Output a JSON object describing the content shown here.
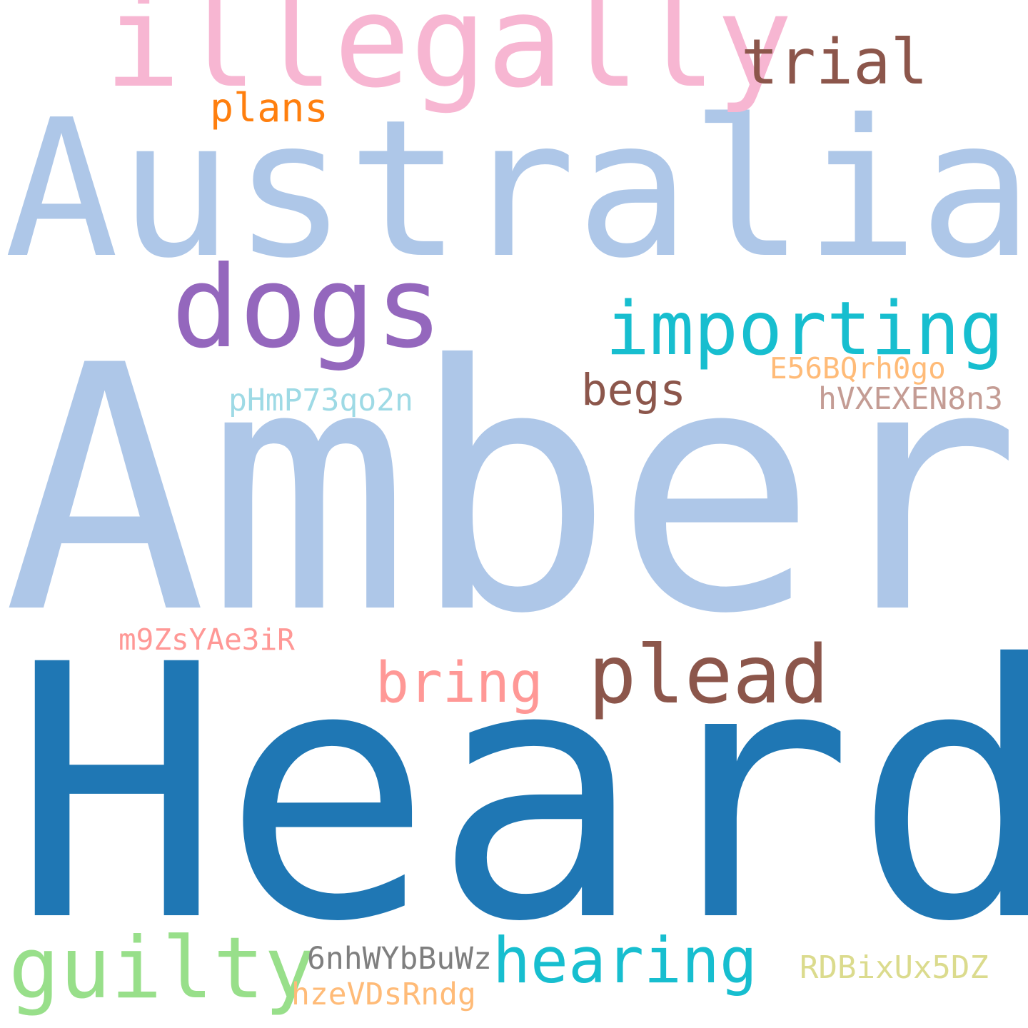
{
  "words": [
    {
      "text": "Heard",
      "color": "#1f77b4"
    },
    {
      "text": "Amber",
      "color": "#aec7e8"
    },
    {
      "text": "Australia",
      "color": "#aec7e8"
    },
    {
      "text": "illegally",
      "color": "#f7b6d2"
    },
    {
      "text": "dogs",
      "color": "#9467bd"
    },
    {
      "text": "importing",
      "color": "#17becf"
    },
    {
      "text": "plead",
      "color": "#8c564b"
    },
    {
      "text": "guilty",
      "color": "#98df8a"
    },
    {
      "text": "hearing",
      "color": "#17becf"
    },
    {
      "text": "trial",
      "color": "#8c564b"
    },
    {
      "text": "bring",
      "color": "#ff9896"
    },
    {
      "text": "begs",
      "color": "#8c564b"
    },
    {
      "text": "plans",
      "color": "#ff7f0e"
    },
    {
      "text": "E56BQrh0go",
      "color": "#ffbb78"
    },
    {
      "text": "hVXEXEN8n3",
      "color": "#c49c94"
    },
    {
      "text": "pHmP73qo2n",
      "color": "#9edae5"
    },
    {
      "text": "m9ZsYAe3iR",
      "color": "#ff9896"
    },
    {
      "text": "6nhWYbBuWz",
      "color": "#7f7f7f"
    },
    {
      "text": "RDBixUx5DZ",
      "color": "#dbdb8d"
    },
    {
      "text": "hzeVDsRndg",
      "color": "#ffbb78"
    }
  ]
}
